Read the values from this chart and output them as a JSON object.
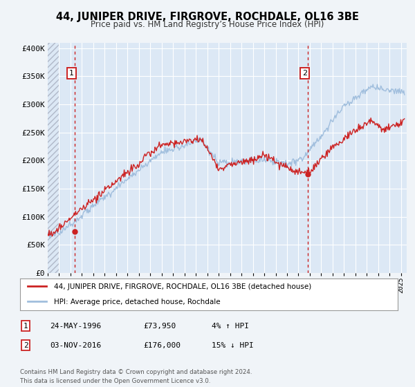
{
  "title": "44, JUNIPER DRIVE, FIRGROVE, ROCHDALE, OL16 3BE",
  "subtitle": "Price paid vs. HM Land Registry’s House Price Index (HPI)",
  "background_color": "#f0f4f8",
  "plot_bg_color": "#dce8f5",
  "grid_color": "#ffffff",
  "hpi_color": "#a0bedd",
  "price_color": "#cc2222",
  "sale1_date_x": 1996.39,
  "sale1_price": 73950,
  "sale2_date_x": 2016.84,
  "sale2_price": 176000,
  "xmin": 1994.0,
  "xmax": 2025.5,
  "ymin": 0,
  "ymax": 410000,
  "legend_label1": "44, JUNIPER DRIVE, FIRGROVE, ROCHDALE, OL16 3BE (detached house)",
  "legend_label2": "HPI: Average price, detached house, Rochdale",
  "table_row1": [
    "1",
    "24-MAY-1996",
    "£73,950",
    "4% ↑ HPI"
  ],
  "table_row2": [
    "2",
    "03-NOV-2016",
    "£176,000",
    "15% ↓ HPI"
  ],
  "footnote": "Contains HM Land Registry data © Crown copyright and database right 2024.\nThis data is licensed under the Open Government Licence v3.0.",
  "yticks": [
    0,
    50000,
    100000,
    150000,
    200000,
    250000,
    300000,
    350000,
    400000
  ],
  "ytick_labels": [
    "£0",
    "£50K",
    "£100K",
    "£150K",
    "£200K",
    "£250K",
    "£300K",
    "£350K",
    "£400K"
  ],
  "hatch_end_x": 1995.0
}
